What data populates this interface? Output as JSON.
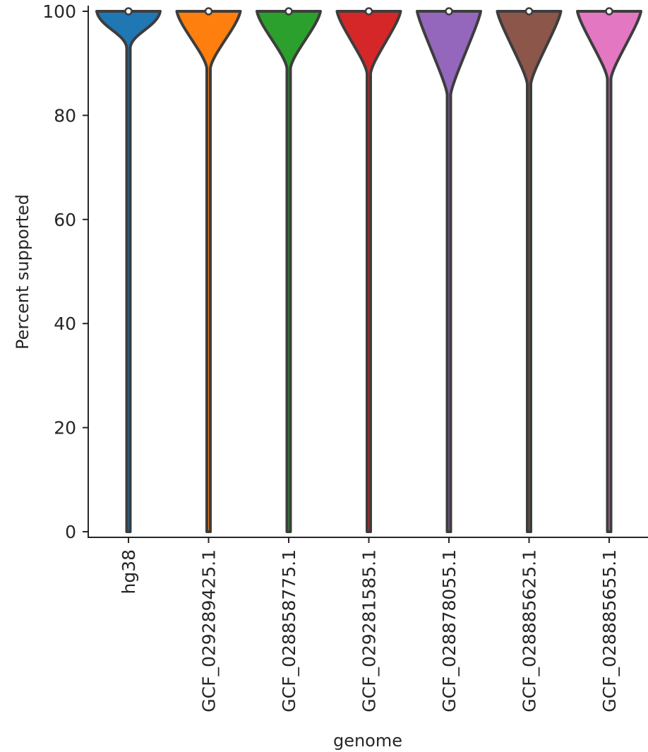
{
  "chart_data": {
    "type": "violin",
    "xlabel": "genome",
    "ylabel": "Percent supported",
    "ylim": [
      0,
      100
    ],
    "yticks": [
      0,
      20,
      40,
      60,
      80,
      100
    ],
    "categories": [
      "hg38",
      "GCF_029289425.1",
      "GCF_028858775.1",
      "GCF_029281585.1",
      "GCF_028878055.1",
      "GCF_028885625.1",
      "GCF_028885655.1"
    ],
    "colors": [
      "#1f77b4",
      "#ff7f0e",
      "#2ca02c",
      "#d62728",
      "#9467bd",
      "#8c564b",
      "#e377c2"
    ],
    "medians": [
      100,
      100,
      100,
      100,
      100,
      100,
      100
    ],
    "violin_min": [
      0,
      0,
      0,
      0,
      0,
      0,
      0
    ],
    "violin_max": [
      100,
      100,
      100,
      100,
      100,
      100,
      100
    ],
    "bulge_start": [
      93,
      89,
      89,
      88,
      84,
      86,
      87
    ],
    "legend": "none",
    "grid": false
  }
}
